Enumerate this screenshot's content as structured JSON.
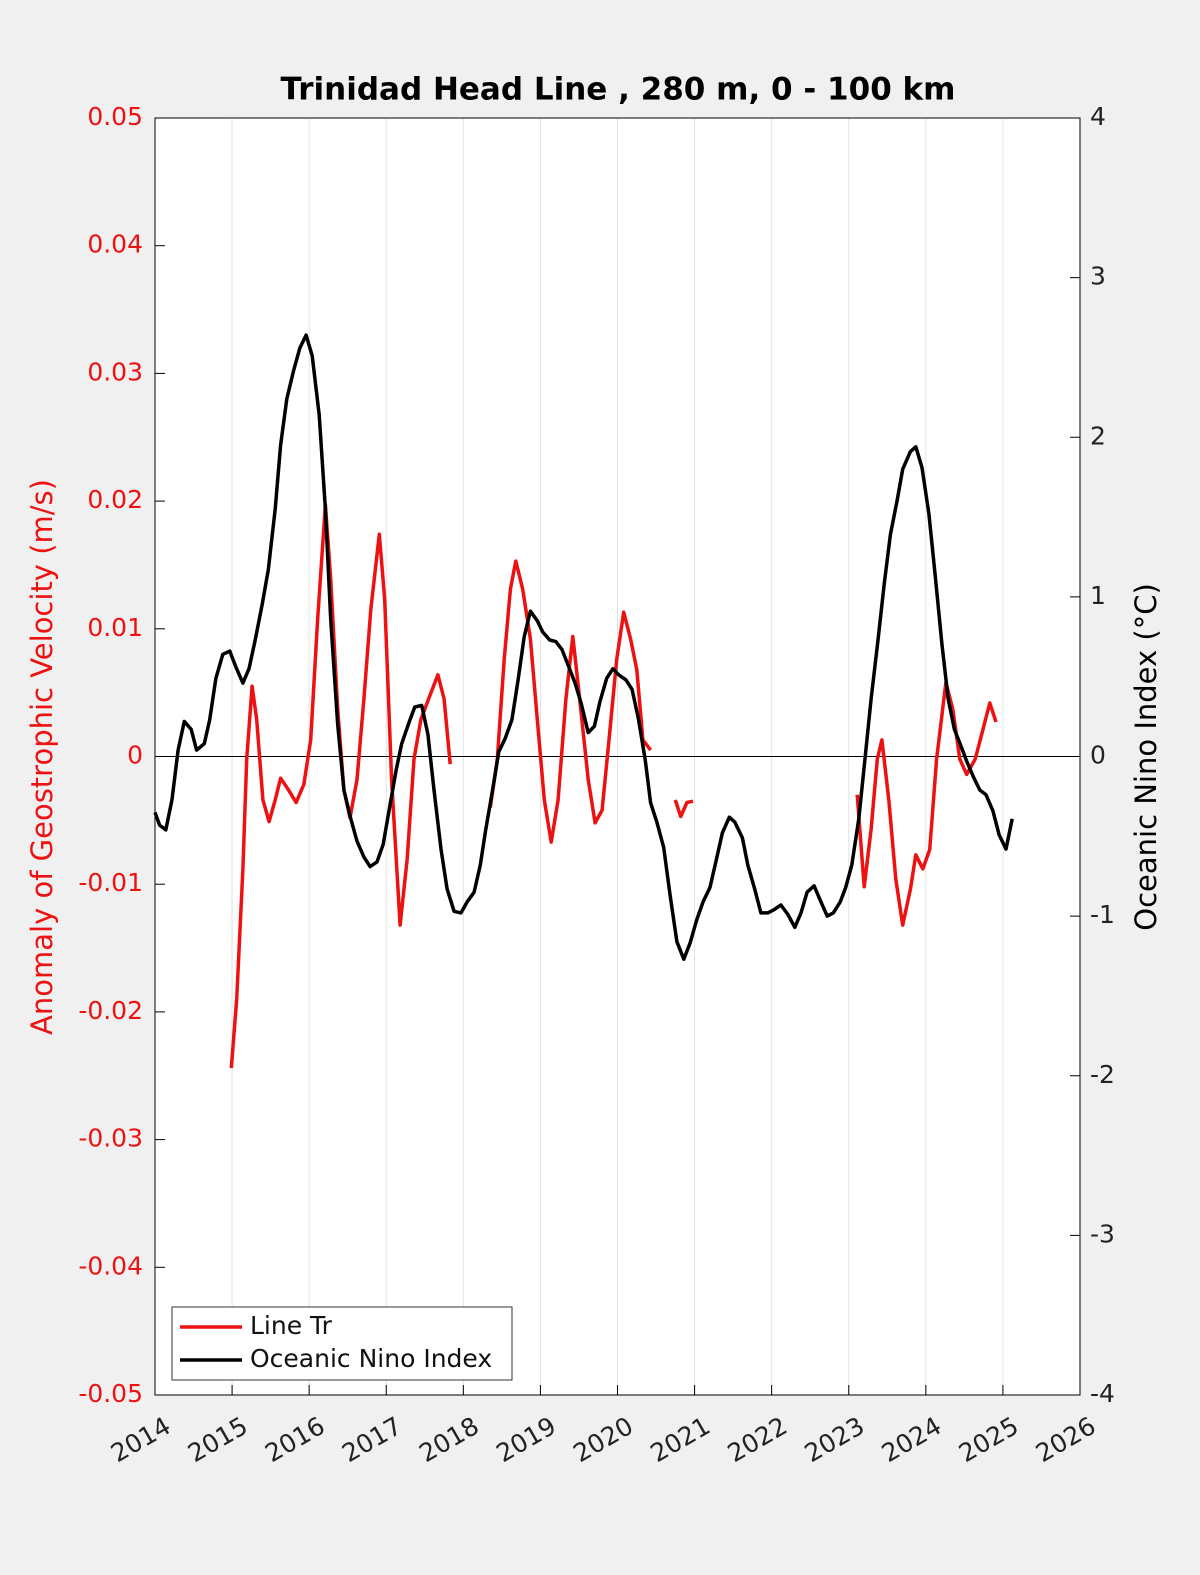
{
  "chart_data": {
    "type": "line",
    "title": "Trinidad Head Line , 280 m, 0 - 100 km",
    "ylabel": "Anomaly of Geostrophic Velocity (m/s)",
    "y2label": "Oceanic Nino Index (°C)",
    "xlim": [
      2014,
      2026
    ],
    "xticks": [
      2014,
      2015,
      2016,
      2017,
      2018,
      2019,
      2020,
      2021,
      2022,
      2023,
      2024,
      2025,
      2026
    ],
    "ylim": [
      -0.05,
      0.05
    ],
    "yticks": [
      -0.05,
      -0.04,
      -0.03,
      -0.02,
      -0.01,
      0,
      0.01,
      0.02,
      0.03,
      0.04,
      0.05
    ],
    "y2lim": [
      -4,
      4
    ],
    "y2ticks": [
      -4,
      -3,
      -2,
      -1,
      0,
      1,
      2,
      3,
      4
    ],
    "grid": true,
    "legend": "lower left",
    "ylabel_color": "#ee1111",
    "series": [
      {
        "name": "Line Tr",
        "color": "#ee1111",
        "x": [
          2014.99,
          2015.06,
          2015.14,
          2015.19,
          2015.26,
          2015.32,
          2015.4,
          2015.48,
          2015.56,
          2015.63,
          2015.73,
          2015.83,
          2015.93,
          2016.02,
          2016.11,
          2016.21,
          2016.28,
          2016.37,
          2016.45,
          2016.53,
          2016.62,
          2016.71,
          2016.8,
          2016.91,
          2016.98,
          2017.07,
          2017.18,
          2017.27,
          2017.36,
          2017.45,
          2017.55,
          2017.67,
          2017.75,
          2017.83,
          2018.1,
          2018.35,
          2018.44,
          2018.53,
          2018.61,
          2018.68,
          2018.77,
          2018.87,
          2018.96,
          2019.05,
          2019.14,
          2019.23,
          2019.33,
          2019.42,
          2019.51,
          2019.62,
          2019.71,
          2019.8,
          2019.89,
          2019.99,
          2020.08,
          2020.17,
          2020.25,
          2020.33,
          2020.43,
          2020.6,
          2020.75,
          2020.82,
          2020.9,
          2020.98,
          2022.0,
          2023.11,
          2023.2,
          2023.29,
          2023.37,
          2023.43,
          2023.52,
          2023.61,
          2023.7,
          2023.8,
          2023.87,
          2023.96,
          2024.05,
          2024.14,
          2024.26,
          2024.35,
          2024.44,
          2024.53,
          2024.64,
          2024.74,
          2024.83,
          2024.91
        ],
        "values": [
          -0.0244,
          -0.019,
          -0.0088,
          -0.0002,
          0.0055,
          0.0029,
          -0.0034,
          -0.0051,
          -0.0034,
          -0.0017,
          -0.0026,
          -0.0036,
          -0.0022,
          0.0013,
          0.0107,
          0.0197,
          0.0139,
          0.0037,
          -0.0026,
          -0.0048,
          -0.0018,
          0.0045,
          0.0115,
          0.0174,
          0.0123,
          -0.0018,
          -0.0132,
          -0.0081,
          -0.0002,
          0.0029,
          0.0045,
          0.0064,
          0.0045,
          -0.0006,
          null,
          -0.004,
          -0.0002,
          0.0076,
          0.0131,
          0.0153,
          0.0131,
          0.0092,
          0.0029,
          -0.0034,
          -0.0067,
          -0.0034,
          0.0045,
          0.0094,
          0.0045,
          -0.0018,
          -0.0052,
          -0.0042,
          0.0013,
          0.0076,
          0.0113,
          0.0092,
          0.0068,
          0.0013,
          0.0005,
          null,
          -0.0034,
          -0.0047,
          -0.0036,
          -0.0035,
          null,
          -0.003,
          -0.0102,
          -0.0057,
          -0.0002,
          0.0013,
          -0.0034,
          -0.0096,
          -0.0132,
          -0.0104,
          -0.0077,
          -0.0088,
          -0.0073,
          -0.0002,
          0.0058,
          0.0037,
          -0.0002,
          -0.0014,
          -0.0002,
          0.0021,
          0.0042,
          0.0027
        ]
      },
      {
        "name": "Oceanic Nino Index",
        "color": "#000000",
        "axis": "y2",
        "x": [
          2014.0,
          2014.06,
          2014.14,
          2014.22,
          2014.3,
          2014.38,
          2014.47,
          2014.54,
          2014.64,
          2014.71,
          2014.79,
          2014.88,
          2014.97,
          2015.05,
          2015.14,
          2015.22,
          2015.3,
          2015.39,
          2015.47,
          2015.56,
          2015.63,
          2015.71,
          2015.8,
          2015.88,
          2015.96,
          2016.04,
          2016.13,
          2016.21,
          2016.28,
          2016.37,
          2016.45,
          2016.54,
          2016.62,
          2016.71,
          2016.79,
          2016.88,
          2016.96,
          2017.05,
          2017.13,
          2017.2,
          2017.3,
          2017.37,
          2017.46,
          2017.54,
          2017.62,
          2017.71,
          2017.79,
          2017.88,
          2017.97,
          2018.05,
          2018.14,
          2018.22,
          2018.29,
          2018.39,
          2018.46,
          2018.54,
          2018.63,
          2018.71,
          2018.79,
          2018.87,
          2018.96,
          2019.03,
          2019.12,
          2019.2,
          2019.28,
          2019.37,
          2019.45,
          2019.53,
          2019.62,
          2019.7,
          2019.77,
          2019.86,
          2019.94,
          2020.02,
          2020.11,
          2020.19,
          2020.27,
          2020.36,
          2020.43,
          2020.51,
          2020.6,
          2020.68,
          2020.77,
          2020.86,
          2020.94,
          2021.03,
          2021.11,
          2021.2,
          2021.28,
          2021.36,
          2021.45,
          2021.52,
          2021.62,
          2021.69,
          2021.78,
          2021.86,
          2021.95,
          2022.03,
          2022.12,
          2022.21,
          2022.3,
          2022.38,
          2022.46,
          2022.55,
          2022.63,
          2022.72,
          2022.8,
          2022.89,
          2022.96,
          2023.04,
          2023.13,
          2023.21,
          2023.29,
          2023.38,
          2023.46,
          2023.54,
          2023.63,
          2023.7,
          2023.8,
          2023.87,
          2023.95,
          2024.04,
          2024.12,
          2024.21,
          2024.29,
          2024.37,
          2024.46,
          2024.53,
          2024.62,
          2024.7,
          2024.78,
          2024.87,
          2024.95,
          2025.04,
          2025.12
        ],
        "values": [
          -0.35,
          -0.43,
          -0.46,
          -0.27,
          0.04,
          0.22,
          0.17,
          0.04,
          0.08,
          0.23,
          0.49,
          0.64,
          0.66,
          0.56,
          0.46,
          0.55,
          0.73,
          0.95,
          1.17,
          1.55,
          1.95,
          2.24,
          2.42,
          2.56,
          2.64,
          2.51,
          2.14,
          1.55,
          0.86,
          0.2,
          -0.21,
          -0.39,
          -0.53,
          -0.63,
          -0.69,
          -0.66,
          -0.55,
          -0.3,
          -0.08,
          0.08,
          0.22,
          0.31,
          0.32,
          0.14,
          -0.21,
          -0.58,
          -0.83,
          -0.97,
          -0.98,
          -0.91,
          -0.85,
          -0.68,
          -0.46,
          -0.18,
          0.03,
          0.11,
          0.23,
          0.48,
          0.75,
          0.91,
          0.85,
          0.78,
          0.73,
          0.72,
          0.67,
          0.56,
          0.46,
          0.33,
          0.15,
          0.19,
          0.34,
          0.49,
          0.55,
          0.51,
          0.48,
          0.42,
          0.24,
          -0.02,
          -0.29,
          -0.41,
          -0.57,
          -0.86,
          -1.16,
          -1.27,
          -1.17,
          -1.02,
          -0.91,
          -0.82,
          -0.65,
          -0.48,
          -0.38,
          -0.41,
          -0.51,
          -0.68,
          -0.83,
          -0.98,
          -0.98,
          -0.96,
          -0.93,
          -0.99,
          -1.07,
          -0.98,
          -0.85,
          -0.81,
          -0.9,
          -1.0,
          -0.98,
          -0.91,
          -0.82,
          -0.68,
          -0.39,
          -0.02,
          0.36,
          0.73,
          1.08,
          1.39,
          1.61,
          1.8,
          1.91,
          1.94,
          1.81,
          1.52,
          1.14,
          0.7,
          0.36,
          0.17,
          0.06,
          -0.03,
          -0.13,
          -0.21,
          -0.24,
          -0.34,
          -0.49,
          -0.58,
          -0.39
        ]
      }
    ]
  }
}
